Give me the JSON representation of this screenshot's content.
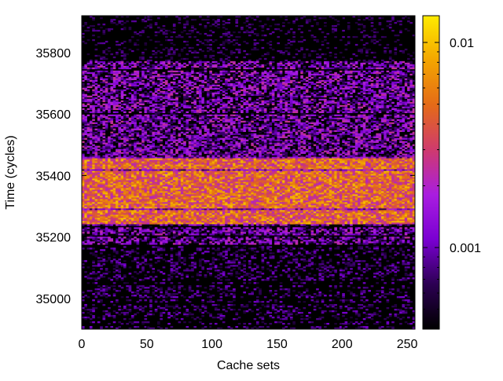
{
  "chart_data": {
    "type": "heatmap",
    "xlabel": "Cache sets",
    "ylabel": "Time (cycles)",
    "xlim": [
      0,
      256
    ],
    "ylim": [
      34900,
      35920
    ],
    "x_ticks": [
      0,
      50,
      100,
      150,
      200,
      250
    ],
    "y_ticks": [
      35000,
      35200,
      35400,
      35600,
      35800
    ],
    "colorbar": {
      "scale": "log",
      "range": [
        0.0004,
        0.0135
      ],
      "ticks": [
        {
          "value": 0.001,
          "label": "0.001"
        },
        {
          "value": 0.01,
          "label": "0.01"
        }
      ],
      "palette": [
        "#000000",
        "#2c0052",
        "#7a00d2",
        "#a91de0",
        "#cf3a6e",
        "#e46a18",
        "#f3a500",
        "#ffeb00"
      ]
    },
    "bands": [
      {
        "time_range": [
          35175,
          35240
        ],
        "typical_value": 0.0011
      },
      {
        "time_range": [
          35240,
          35460
        ],
        "typical_value": 0.0045
      },
      {
        "time_range": [
          35460,
          35770
        ],
        "typical_value": 0.0012
      },
      {
        "time_range": [
          34900,
          35175
        ],
        "typical_value": 0.0005
      },
      {
        "time_range": [
          35770,
          35920
        ],
        "typical_value": 0.0004
      }
    ]
  }
}
